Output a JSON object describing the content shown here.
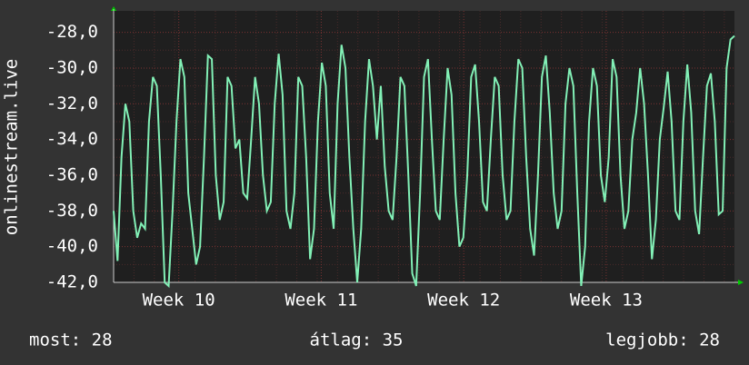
{
  "chart_data": {
    "type": "line",
    "y_label": "onlinestream.live",
    "color": "#82f0b6",
    "xlim": [
      0,
      30.5
    ],
    "xticks": [
      {
        "value": 3.2,
        "label": "Week 10"
      },
      {
        "value": 10.2,
        "label": "Week 11"
      },
      {
        "value": 17.2,
        "label": "Week 12"
      },
      {
        "value": 24.2,
        "label": "Week 13"
      }
    ],
    "ylim": [
      -42,
      -26.8
    ],
    "yticks": [
      {
        "value": -42,
        "label": "-42,0"
      },
      {
        "value": -40,
        "label": "-40,0"
      },
      {
        "value": -38,
        "label": "-38,0"
      },
      {
        "value": -36,
        "label": "-36,0"
      },
      {
        "value": -34,
        "label": "-34,0"
      },
      {
        "value": -32,
        "label": "-32,0"
      },
      {
        "value": -30,
        "label": "-30,0"
      },
      {
        "value": -28,
        "label": "-28,0"
      }
    ],
    "grid": true,
    "values": [
      -38,
      -40.8,
      -35,
      -32,
      -33,
      -38,
      -39.5,
      -38.7,
      -39,
      -33,
      -30.5,
      -31,
      -36,
      -42,
      -42.2,
      -38,
      -33,
      -29.5,
      -30.5,
      -37,
      -39,
      -41,
      -40,
      -35,
      -29.3,
      -29.5,
      -36,
      -38.5,
      -37.5,
      -30.5,
      -31,
      -34.5,
      -34,
      -37,
      -37.3,
      -34,
      -30.5,
      -32,
      -36,
      -38,
      -37.5,
      -32,
      -29.2,
      -31.5,
      -38,
      -39,
      -37,
      -30.5,
      -31,
      -35,
      -40.7,
      -39,
      -33,
      -29.7,
      -31,
      -37,
      -39,
      -32,
      -28.7,
      -30,
      -35,
      -39,
      -42,
      -39,
      -33,
      -29.5,
      -31,
      -34,
      -31,
      -35.5,
      -38,
      -38.5,
      -35,
      -30.5,
      -31,
      -36,
      -41.5,
      -42.2,
      -37,
      -30.5,
      -29.5,
      -34,
      -38,
      -38.5,
      -34,
      -30,
      -31.5,
      -37,
      -40,
      -39.5,
      -36,
      -30.5,
      -29.8,
      -33,
      -37.5,
      -38,
      -34,
      -30.5,
      -31,
      -36,
      -38.5,
      -38,
      -33,
      -29.5,
      -30,
      -35,
      -39,
      -40.5,
      -36,
      -30.5,
      -29.3,
      -32.5,
      -37,
      -39,
      -38,
      -32,
      -30,
      -31,
      -37,
      -42.2,
      -40,
      -33,
      -30,
      -31,
      -36,
      -37.5,
      -35,
      -29.5,
      -30.5,
      -36,
      -39,
      -38,
      -34,
      -32.5,
      -30,
      -32,
      -36,
      -40.7,
      -38.5,
      -34,
      -32.2,
      -30.2,
      -33,
      -38,
      -38.5,
      -33,
      -29.8,
      -32.5,
      -38,
      -39.3,
      -35,
      -31,
      -30.3,
      -33,
      -38.2,
      -38,
      -30,
      -28.4,
      -28.2
    ],
    "stats": [
      "most: 28",
      "átlag: 35",
      "legjobb: 28"
    ]
  }
}
